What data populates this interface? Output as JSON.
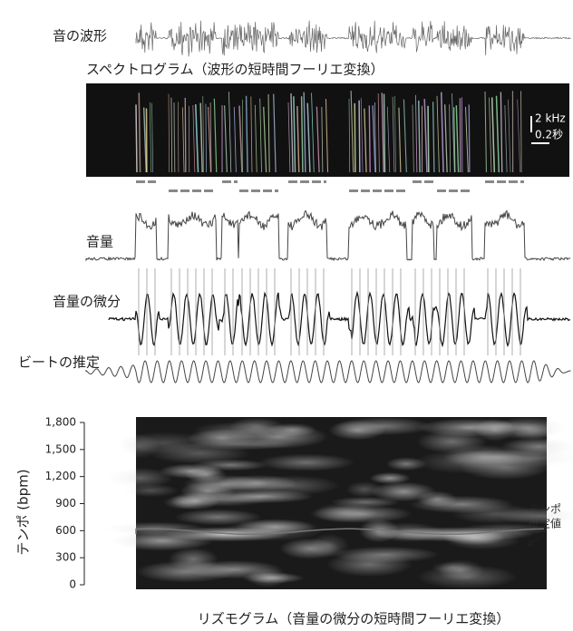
{
  "waveform": {
    "label": "音の波形"
  },
  "spectrogram": {
    "label": "スペクトログラム（波形の短時間フーリエ変換）",
    "scale_frequency": "2 kHz",
    "scale_time": "0.2秒"
  },
  "volume": {
    "label": "音量"
  },
  "volume_derivative": {
    "label": "音量の微分"
  },
  "beat_estimate": {
    "label": "ビートの推定"
  },
  "rhythmogram": {
    "caption": "リズモグラム（音量の微分の短時間フーリエ変換）",
    "y_label": "テンポ (bpm)",
    "ylim": [
      0,
      1800
    ],
    "yticks": [
      0,
      300,
      600,
      900,
      {
        "value": 1200,
        "label": "1,200"
      },
      {
        "value": 1500,
        "label": "1,500"
      },
      {
        "value": 1800,
        "label": "1,800"
      }
    ],
    "tempo_estimate": 560,
    "tempo_estimate_label": [
      "テンポ",
      "推定値"
    ]
  }
}
